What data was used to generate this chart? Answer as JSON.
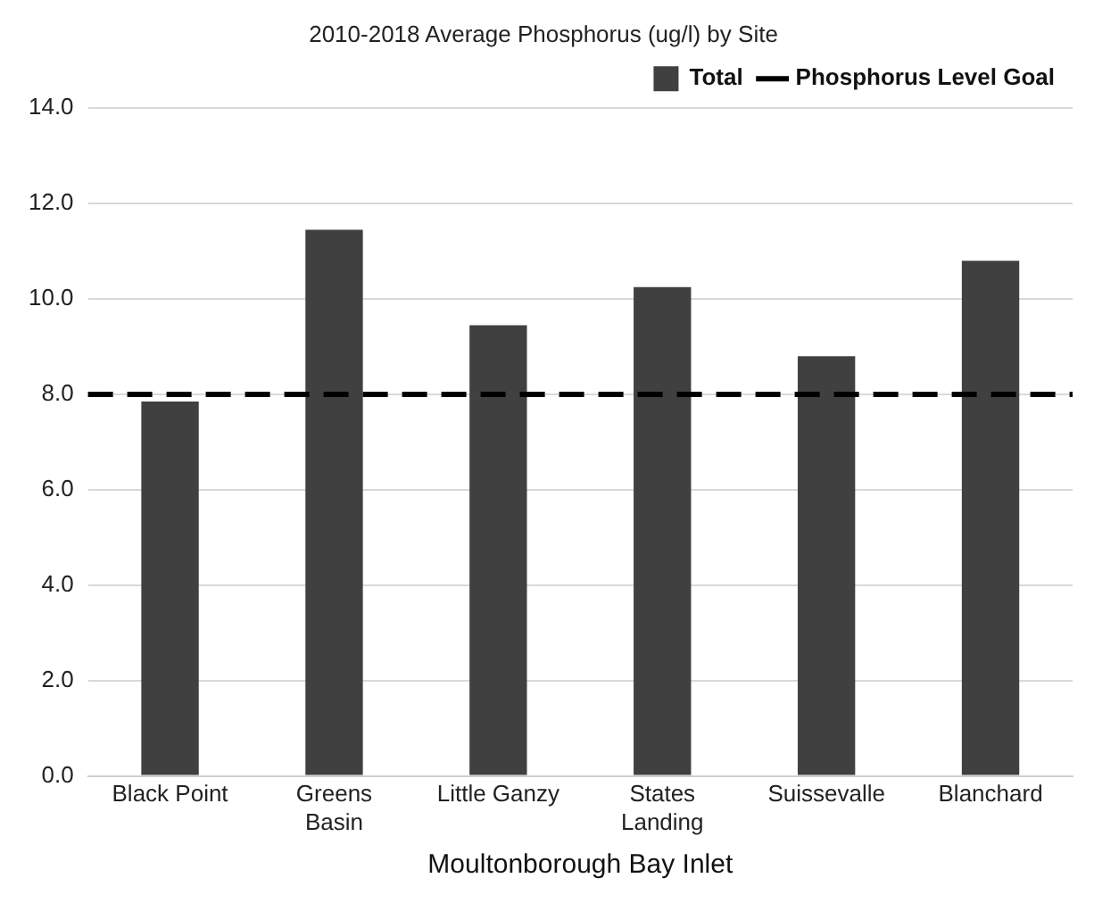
{
  "chart_data": {
    "type": "bar",
    "title": "2010-2018 Average Phosphorus (ug/l) by Site",
    "xlabel": "Moultonborough Bay Inlet",
    "categories": [
      "Black Point",
      "Greens Basin",
      "Little Ganzy",
      "States Landing",
      "Suissevalle",
      "Blanchard"
    ],
    "series": [
      {
        "name": "Total",
        "color": "#404040",
        "values": [
          7.85,
          11.45,
          9.45,
          10.25,
          8.8,
          10.8
        ]
      }
    ],
    "ylim": [
      0,
      14
    ],
    "yticks": [
      {
        "value": 0,
        "label": "0.0"
      },
      {
        "value": 2,
        "label": "2.0"
      },
      {
        "value": 4,
        "label": "4.0"
      },
      {
        "value": 6,
        "label": "6.0"
      },
      {
        "value": 8,
        "label": "8.0"
      },
      {
        "value": 10,
        "label": "10.0"
      },
      {
        "value": 12,
        "label": "12.0"
      },
      {
        "value": 14,
        "label": "14.0"
      }
    ],
    "grid": "y",
    "legend": "top right",
    "ref_lines": [
      {
        "axis": "y",
        "value": 8,
        "label": "Phosphorus Level Goal",
        "color": "#000000",
        "line_style": "dashed"
      }
    ]
  }
}
